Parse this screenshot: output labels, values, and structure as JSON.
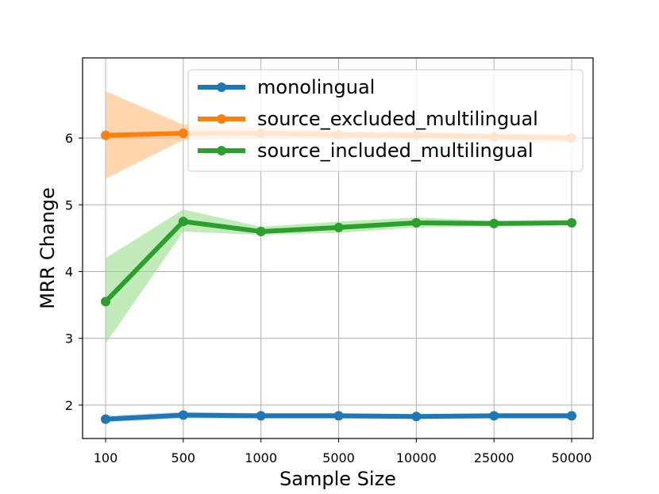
{
  "chart_data": {
    "type": "line",
    "xlabel": "Sample Size",
    "ylabel": "MRR Change",
    "categories": [
      "100",
      "500",
      "1000",
      "5000",
      "10000",
      "25000",
      "50000"
    ],
    "yticks": [
      "2",
      "3",
      "4",
      "5",
      "6"
    ],
    "ylim": [
      1.5,
      7.2
    ],
    "grid": true,
    "legend_position": "top-right",
    "series": [
      {
        "name": "monolingual",
        "color": "#1f77b4",
        "band_color": "#aec7e8",
        "values": [
          1.79,
          1.85,
          1.84,
          1.84,
          1.83,
          1.84,
          1.84
        ],
        "lower": [
          1.74,
          1.8,
          1.8,
          1.8,
          1.79,
          1.8,
          1.8
        ],
        "upper": [
          1.84,
          1.9,
          1.88,
          1.88,
          1.87,
          1.88,
          1.88
        ]
      },
      {
        "name": "source_excluded_multilingual",
        "color": "#ff7f0e",
        "band_color": "#ffbb78",
        "values": [
          6.04,
          6.07,
          6.07,
          6.05,
          6.04,
          6.02,
          6.0
        ],
        "lower": [
          5.39,
          5.97,
          5.99,
          5.98,
          5.97,
          5.95,
          5.93
        ],
        "upper": [
          6.7,
          6.2,
          6.16,
          6.12,
          6.1,
          6.08,
          6.06
        ]
      },
      {
        "name": "source_included_multilingual",
        "color": "#2ca02c",
        "band_color": "#98df8a",
        "values": [
          3.55,
          4.75,
          4.6,
          4.66,
          4.73,
          4.72,
          4.73
        ],
        "lower": [
          2.92,
          4.6,
          4.55,
          4.58,
          4.66,
          4.68,
          4.69
        ],
        "upper": [
          4.2,
          4.93,
          4.67,
          4.75,
          4.81,
          4.76,
          4.77
        ]
      }
    ]
  }
}
